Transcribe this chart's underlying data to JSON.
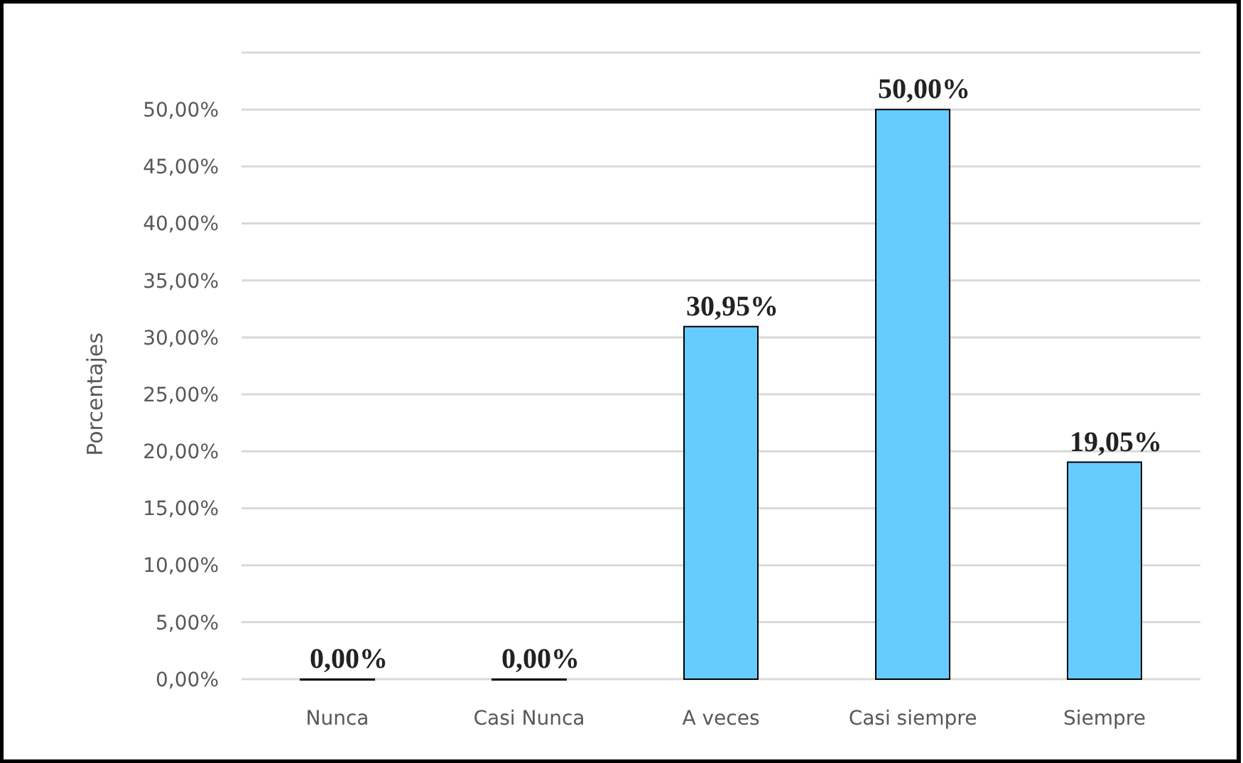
{
  "chart_data": {
    "type": "bar",
    "ylabel": "Porcentajes",
    "categories": [
      "Nunca",
      "Casi Nunca",
      "A veces",
      "Casi siempre",
      "Siempre"
    ],
    "values": [
      0,
      0,
      30.95,
      50,
      19.05
    ],
    "value_labels": [
      "0,00%",
      "0,00%",
      "30,95%",
      "50,00%",
      "19,05%"
    ],
    "color": "#66ccff",
    "ylim": [
      0,
      55
    ],
    "yticks": [
      {
        "value": 0,
        "label": "0,00%"
      },
      {
        "value": 5,
        "label": "5,00%"
      },
      {
        "value": 10,
        "label": "10,00%"
      },
      {
        "value": 15,
        "label": "15,00%"
      },
      {
        "value": 20,
        "label": "20,00%"
      },
      {
        "value": 25,
        "label": "25,00%"
      },
      {
        "value": 30,
        "label": "30,00%"
      },
      {
        "value": 35,
        "label": "35,00%"
      },
      {
        "value": 40,
        "label": "40,00%"
      },
      {
        "value": 45,
        "label": "45,00%"
      },
      {
        "value": 50,
        "label": "50,00%"
      },
      {
        "value": 55,
        "label": null
      }
    ],
    "grid": "y"
  }
}
